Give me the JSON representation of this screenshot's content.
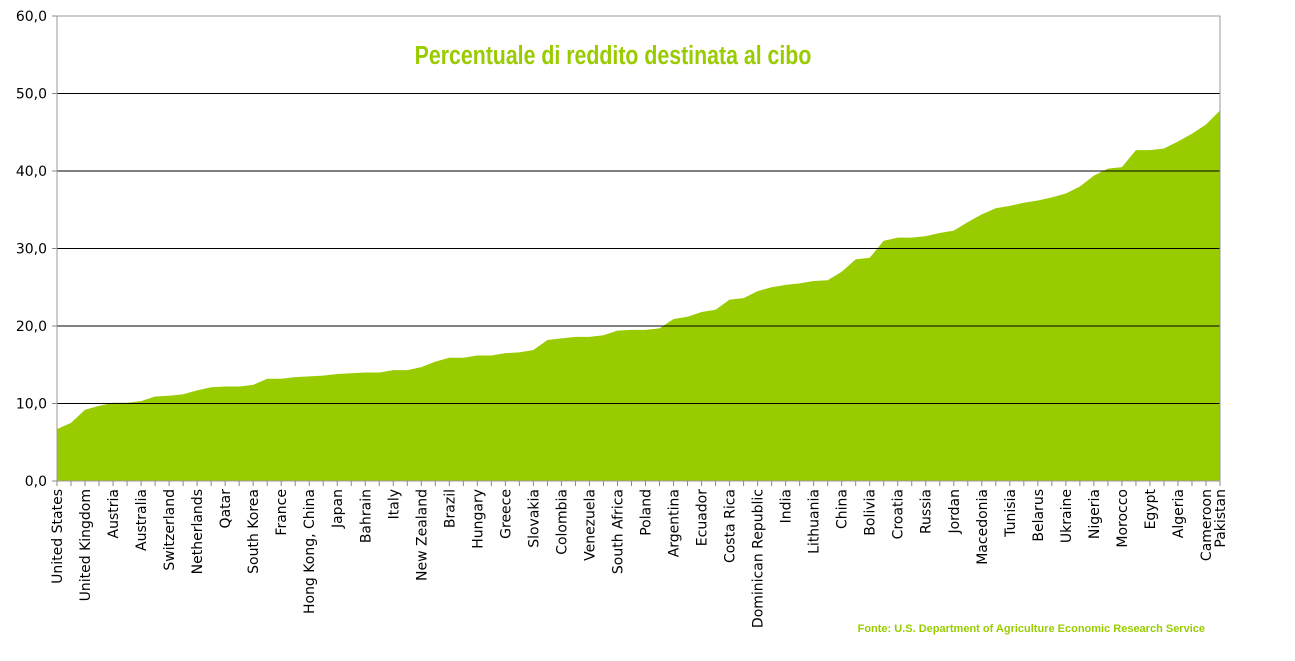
{
  "chart_data": {
    "type": "area",
    "title": "Percentuale di reddito destinata al cibo",
    "source": "Fonte: U.S. Department of Agriculture Economic Research Service",
    "color": "#99cc00",
    "categories": [
      "United States",
      null,
      "United Kingdom",
      null,
      "Austria",
      null,
      "Australia",
      null,
      "Switzerland",
      null,
      "Netherlands",
      null,
      "Qatar",
      null,
      "South Korea",
      null,
      "France",
      null,
      "Hong Kong, China",
      null,
      "Japan",
      null,
      "Bahrain",
      null,
      "Italy",
      null,
      "New Zealand",
      null,
      "Brazil",
      null,
      "Hungary",
      null,
      "Greece",
      null,
      "Slovakia",
      null,
      "Colombia",
      null,
      "Venezuela",
      null,
      "South Africa",
      null,
      "Poland",
      null,
      "Argentina",
      null,
      "Ecuador",
      null,
      "Costa Rica",
      null,
      "Dominican Republic",
      null,
      "India",
      null,
      "Lithuania",
      null,
      "China",
      null,
      "Bolivia",
      null,
      "Croatia",
      null,
      "Russia",
      null,
      "Jordan",
      null,
      "Macedonia",
      null,
      "Tunisia",
      null,
      "Belarus",
      null,
      "Ukraine",
      null,
      "Nigeria",
      null,
      "Morocco",
      null,
      "Egypt",
      null,
      "Algeria",
      null,
      "Cameroon",
      "Pakistan"
    ],
    "values": [
      6.7,
      7.5,
      9.2,
      9.7,
      10.1,
      10.1,
      10.3,
      10.9,
      11.0,
      11.2,
      11.7,
      12.1,
      12.2,
      12.2,
      12.4,
      13.2,
      13.2,
      13.4,
      13.5,
      13.6,
      13.8,
      13.9,
      14.0,
      14.0,
      14.3,
      14.3,
      14.7,
      15.4,
      15.9,
      15.9,
      16.2,
      16.2,
      16.5,
      16.6,
      16.9,
      18.2,
      18.4,
      18.6,
      18.6,
      18.8,
      19.4,
      19.5,
      19.5,
      19.7,
      20.9,
      21.2,
      21.8,
      22.1,
      23.4,
      23.6,
      24.5,
      25.0,
      25.3,
      25.5,
      25.8,
      25.9,
      27.0,
      28.6,
      28.8,
      31.0,
      31.4,
      31.4,
      31.6,
      32.0,
      32.3,
      33.4,
      34.4,
      35.2,
      35.5,
      35.9,
      36.2,
      36.6,
      37.1,
      38.0,
      39.4,
      40.3,
      40.5,
      42.7,
      42.7,
      42.9,
      43.8,
      44.8,
      46.0,
      47.8
    ],
    "ylim": [
      0,
      60
    ],
    "yticks": [
      {
        "value": 0,
        "label": "0,0"
      },
      {
        "value": 10,
        "label": "10,0"
      },
      {
        "value": 20,
        "label": "20,0"
      },
      {
        "value": 30,
        "label": "30,0"
      },
      {
        "value": 40,
        "label": "40,0"
      },
      {
        "value": 50,
        "label": "50,0"
      },
      {
        "value": 60,
        "label": "60,0"
      }
    ],
    "grid": true
  }
}
